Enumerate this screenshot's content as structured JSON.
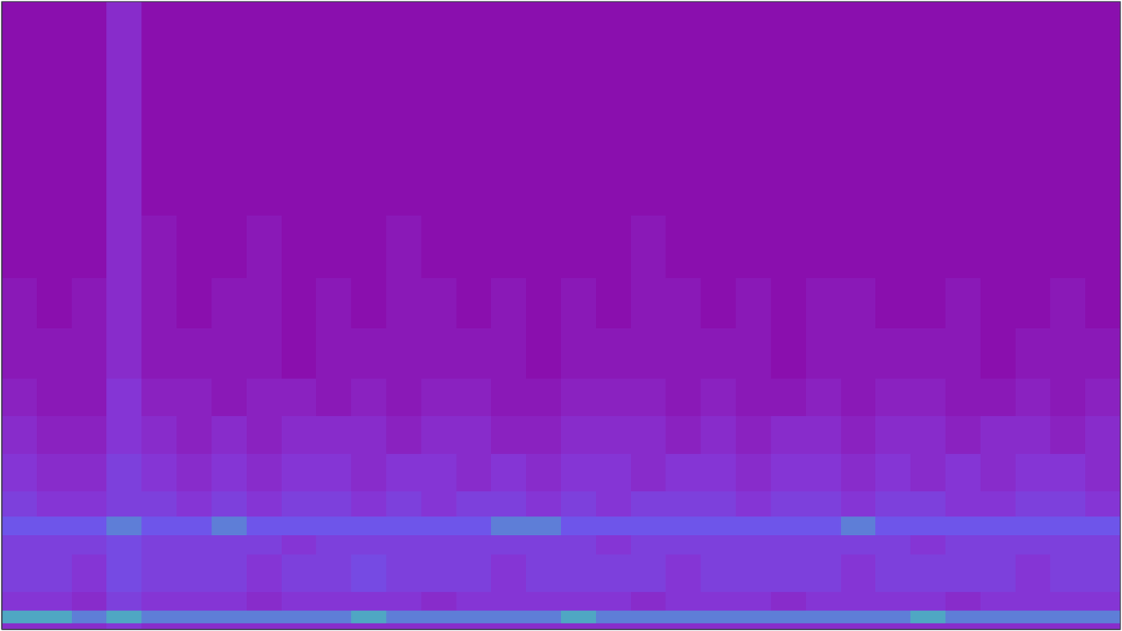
{
  "chart_data": {
    "type": "heatmap",
    "tick_labels": false,
    "xlim": [
      0,
      32
    ],
    "ylim": [
      0,
      100
    ],
    "zlim": [
      0,
      10
    ],
    "y_edges": [
      0,
      1,
      3,
      6,
      12,
      15,
      18,
      22,
      28,
      34,
      40,
      48,
      56,
      66,
      78,
      90,
      100
    ],
    "cells": [
      [
        3,
        3,
        3,
        4,
        3,
        3,
        3,
        3,
        3,
        3,
        3,
        3,
        3,
        3,
        3,
        3,
        3,
        3,
        3,
        3,
        3,
        3,
        3,
        3,
        3,
        3,
        3,
        3,
        3,
        3,
        3,
        3
      ],
      [
        9,
        9,
        8,
        9,
        8,
        8,
        8,
        8,
        8,
        8,
        9,
        8,
        8,
        8,
        8,
        8,
        9,
        8,
        8,
        8,
        8,
        8,
        8,
        8,
        8,
        8,
        9,
        8,
        8,
        8,
        8,
        8
      ],
      [
        4,
        4,
        3,
        5,
        4,
        4,
        4,
        3,
        4,
        4,
        4,
        4,
        3,
        4,
        4,
        4,
        4,
        4,
        3,
        4,
        4,
        4,
        3,
        4,
        4,
        4,
        4,
        3,
        4,
        4,
        4,
        4
      ],
      [
        5,
        5,
        4,
        6,
        5,
        5,
        5,
        4,
        5,
        5,
        6,
        5,
        5,
        5,
        4,
        5,
        5,
        5,
        5,
        4,
        5,
        5,
        5,
        5,
        4,
        5,
        5,
        5,
        5,
        4,
        5,
        5
      ],
      [
        5,
        5,
        5,
        6,
        5,
        5,
        5,
        5,
        4,
        5,
        5,
        5,
        5,
        5,
        5,
        5,
        5,
        4,
        5,
        5,
        5,
        5,
        5,
        5,
        5,
        5,
        4,
        5,
        5,
        5,
        5,
        5
      ],
      [
        7,
        7,
        7,
        8,
        7,
        7,
        8,
        7,
        7,
        7,
        7,
        7,
        7,
        7,
        8,
        8,
        7,
        7,
        7,
        7,
        7,
        7,
        7,
        7,
        8,
        7,
        7,
        7,
        7,
        7,
        7,
        7
      ],
      [
        5,
        4,
        4,
        5,
        5,
        4,
        5,
        4,
        5,
        5,
        4,
        5,
        4,
        5,
        5,
        4,
        5,
        4,
        5,
        5,
        5,
        4,
        5,
        5,
        4,
        5,
        5,
        4,
        4,
        5,
        5,
        4
      ],
      [
        4,
        3,
        3,
        5,
        4,
        3,
        4,
        3,
        4,
        4,
        3,
        4,
        4,
        3,
        4,
        3,
        4,
        4,
        3,
        4,
        4,
        3,
        4,
        4,
        3,
        4,
        3,
        4,
        3,
        4,
        4,
        3
      ],
      [
        3,
        2,
        2,
        4,
        3,
        2,
        3,
        2,
        3,
        3,
        3,
        2,
        3,
        3,
        2,
        2,
        3,
        3,
        3,
        2,
        3,
        2,
        3,
        3,
        2,
        3,
        3,
        2,
        3,
        3,
        2,
        3
      ],
      [
        2,
        1,
        1,
        4,
        2,
        2,
        1,
        2,
        2,
        1,
        2,
        1,
        2,
        2,
        1,
        1,
        2,
        2,
        2,
        1,
        2,
        1,
        1,
        2,
        1,
        2,
        2,
        1,
        1,
        2,
        1,
        2
      ],
      [
        1,
        1,
        1,
        3,
        1,
        1,
        1,
        1,
        0,
        1,
        1,
        1,
        1,
        1,
        1,
        0,
        1,
        1,
        1,
        1,
        1,
        1,
        0,
        1,
        1,
        1,
        1,
        1,
        0,
        1,
        1,
        1
      ],
      [
        1,
        0,
        1,
        3,
        1,
        0,
        1,
        1,
        0,
        1,
        0,
        1,
        1,
        0,
        1,
        0,
        1,
        0,
        1,
        1,
        0,
        1,
        0,
        1,
        1,
        0,
        0,
        1,
        0,
        0,
        1,
        0
      ],
      [
        0,
        0,
        0,
        3,
        1,
        0,
        0,
        1,
        0,
        0,
        0,
        1,
        0,
        0,
        0,
        0,
        0,
        0,
        1,
        0,
        0,
        0,
        0,
        0,
        0,
        0,
        0,
        0,
        0,
        0,
        0,
        0
      ],
      [
        0,
        0,
        0,
        3,
        0,
        0,
        0,
        0,
        0,
        0,
        0,
        0,
        0,
        0,
        0,
        0,
        0,
        0,
        0,
        0,
        0,
        0,
        0,
        0,
        0,
        0,
        0,
        0,
        0,
        0,
        0,
        0
      ],
      [
        0,
        0,
        0,
        3,
        0,
        0,
        0,
        0,
        0,
        0,
        0,
        0,
        0,
        0,
        0,
        0,
        0,
        0,
        0,
        0,
        0,
        0,
        0,
        0,
        0,
        0,
        0,
        0,
        0,
        0,
        0,
        0
      ],
      [
        0,
        0,
        0,
        3,
        0,
        0,
        0,
        0,
        0,
        0,
        0,
        0,
        0,
        0,
        0,
        0,
        0,
        0,
        0,
        0,
        0,
        0,
        0,
        0,
        0,
        0,
        0,
        0,
        0,
        0,
        0,
        0
      ]
    ]
  }
}
